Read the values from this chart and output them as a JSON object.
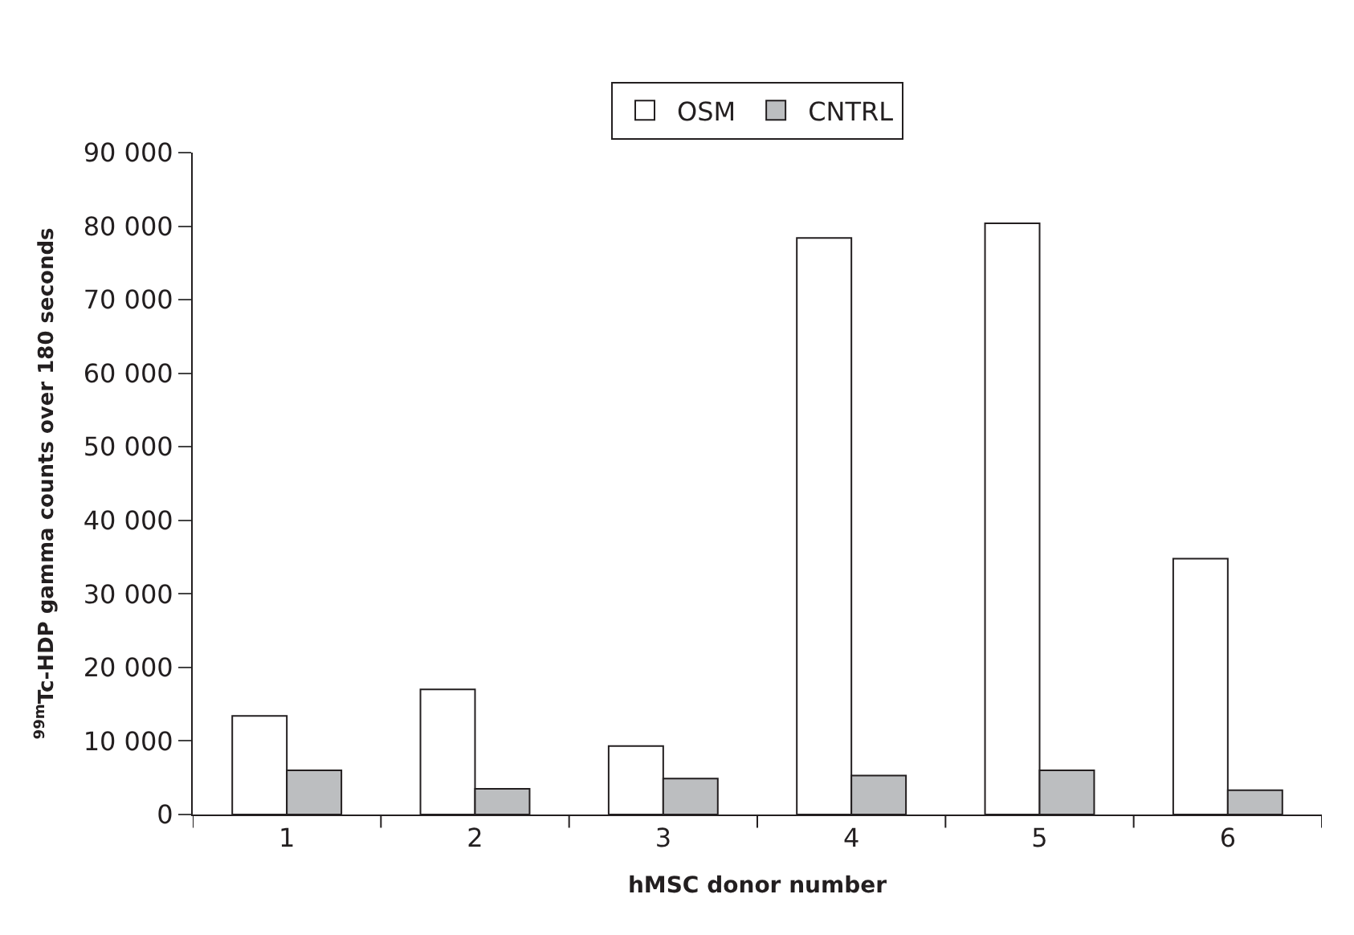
{
  "chart_data": {
    "type": "bar",
    "xlabel": "hMSC donor number",
    "ylabel": "$^{99m}$Tc-HDP gamma counts over 180 seconds",
    "categories": [
      "1",
      "2",
      "3",
      "4",
      "5",
      "6"
    ],
    "series": [
      {
        "name": "OSM",
        "color": "#ffffff",
        "values": [
          13400,
          17000,
          9300,
          78400,
          80400,
          34800
        ]
      },
      {
        "name": "CNTRL",
        "color": "#bcbec0",
        "values": [
          6000,
          3500,
          4900,
          5300,
          6000,
          3300
        ]
      }
    ],
    "ylim": [
      0,
      90000
    ],
    "yticks": [
      {
        "value": 0,
        "label": "0"
      },
      {
        "value": 10000,
        "label": "10 000"
      },
      {
        "value": 20000,
        "label": "20 000"
      },
      {
        "value": 30000,
        "label": "30 000"
      },
      {
        "value": 40000,
        "label": "40 000"
      },
      {
        "value": 50000,
        "label": "50 000"
      },
      {
        "value": 60000,
        "label": "60 000"
      },
      {
        "value": 70000,
        "label": "70 000"
      },
      {
        "value": 80000,
        "label": "80 000"
      },
      {
        "value": 90000,
        "label": "90 000"
      }
    ],
    "legend": "top"
  }
}
